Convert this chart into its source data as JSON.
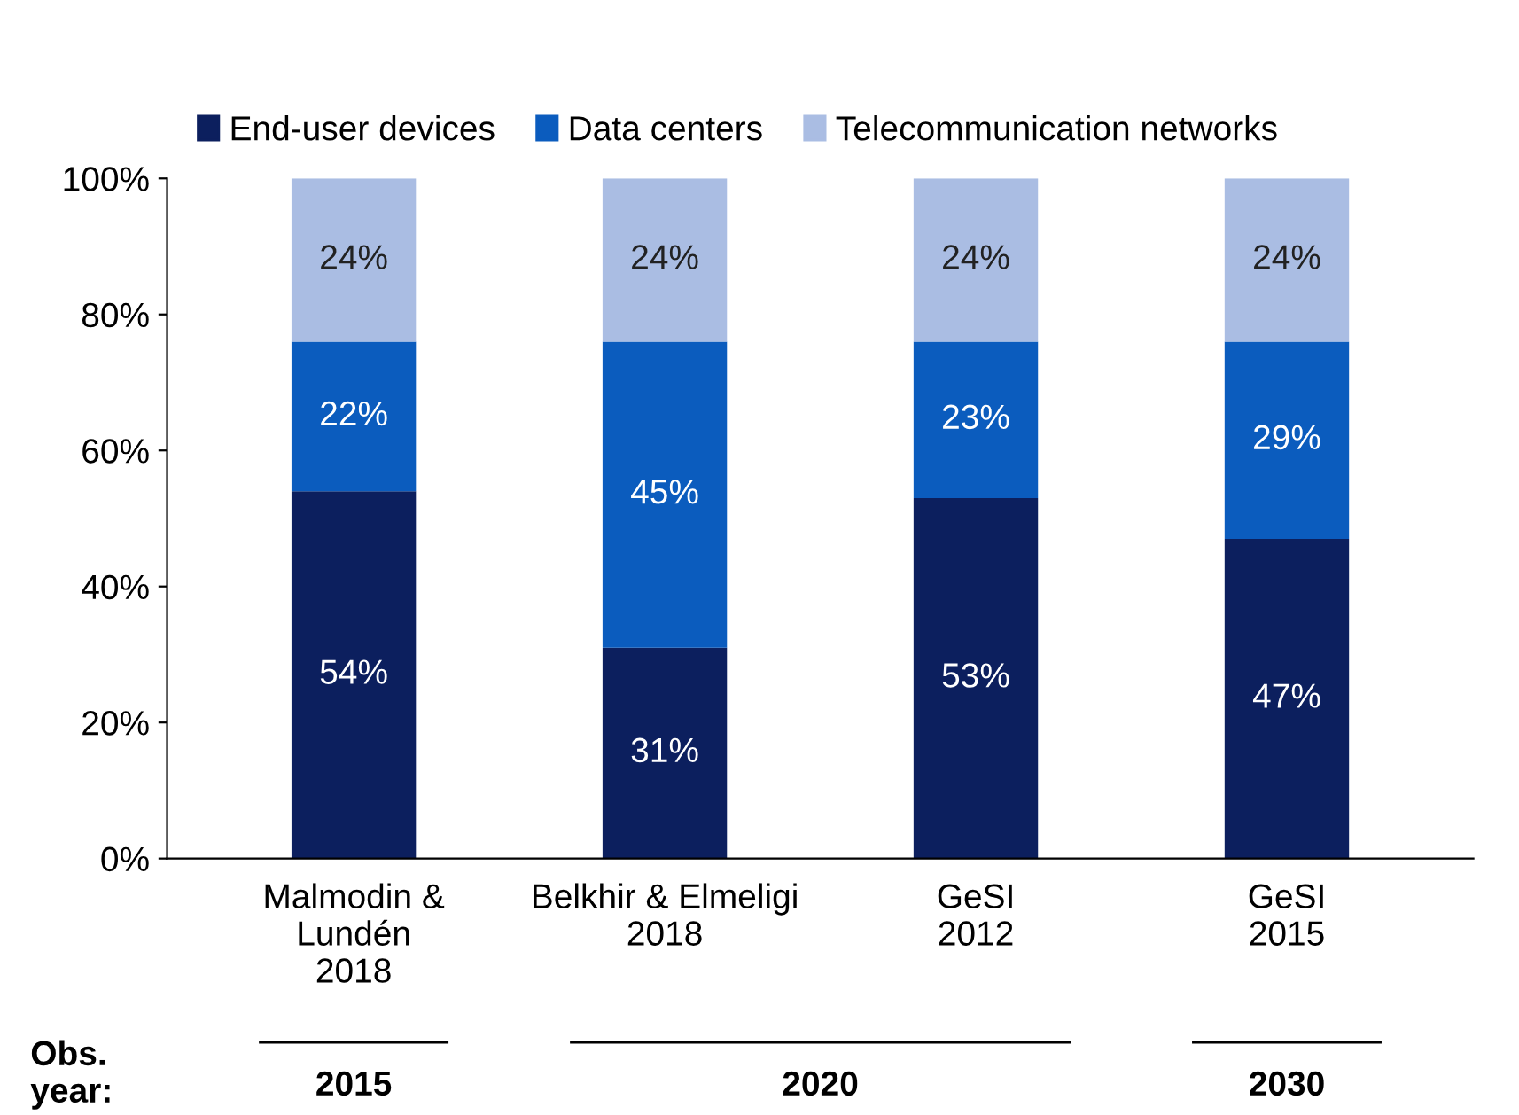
{
  "chart_data": {
    "type": "bar",
    "stacked": true,
    "categories": [
      "Malmodin &\nLundén\n2018",
      "Belkhir & Elmeligi\n2018",
      "GeSI\n2012",
      "GeSI\n2015"
    ],
    "series": [
      {
        "name": "End-user devices",
        "color": "#0c1f5e",
        "values": [
          54,
          31,
          53,
          47
        ],
        "value_labels": [
          "54%",
          "31%",
          "53%",
          "47%"
        ]
      },
      {
        "name": "Data centers",
        "color": "#0b5cbe",
        "values": [
          22,
          45,
          23,
          29
        ],
        "value_labels": [
          "22%",
          "45%",
          "23%",
          "29%"
        ]
      },
      {
        "name": "Telecommunication networks",
        "color": "#aabde3",
        "values": [
          24,
          24,
          24,
          24
        ],
        "value_labels": [
          "24%",
          "24%",
          "24%",
          "24%"
        ]
      }
    ],
    "ylim": [
      0,
      100
    ],
    "yticks": [
      {
        "value": 0,
        "label": "0%"
      },
      {
        "value": 20,
        "label": "20%"
      },
      {
        "value": 40,
        "label": "40%"
      },
      {
        "value": 60,
        "label": "60%"
      },
      {
        "value": 80,
        "label": "80%"
      },
      {
        "value": 100,
        "label": "100%"
      }
    ],
    "annotations": [
      "Obs.\nyear:",
      "2015",
      "2020",
      "2030"
    ],
    "grid": false,
    "legend": "top"
  }
}
